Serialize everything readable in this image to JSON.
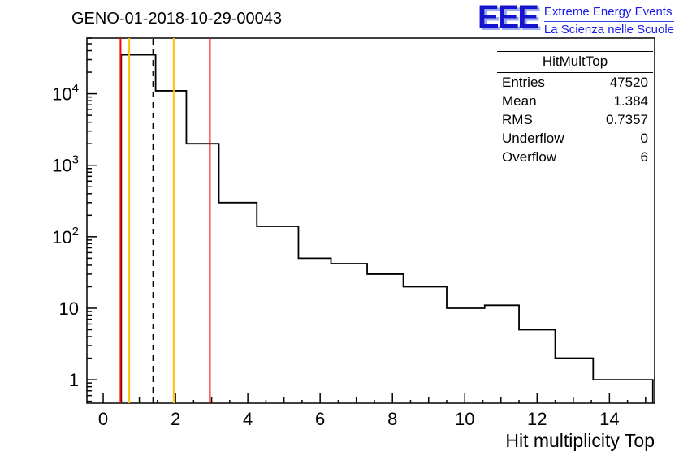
{
  "header": {
    "title": "GENO-01-2018-10-29-00043",
    "logo": {
      "acronym": "EEE",
      "line1": "Extreme Energy Events",
      "line2": "La Scienza nelle Scuole",
      "color": "#1a1aee"
    }
  },
  "stats_box": {
    "title": "HitMultTop",
    "rows": [
      {
        "label": "Entries",
        "value": "47520"
      },
      {
        "label": "Mean",
        "value": "1.384"
      },
      {
        "label": "RMS",
        "value": "0.7357"
      },
      {
        "label": "Underflow",
        "value": "0"
      },
      {
        "label": "Overflow",
        "value": "6"
      }
    ]
  },
  "chart_data": {
    "type": "line",
    "subtype": "step-histogram",
    "title": "GENO-01-2018-10-29-00043",
    "xlabel": "Hit multiplicity Top",
    "ylabel": "",
    "y_scale": "log",
    "x_range": [
      -0.45,
      15.25
    ],
    "y_range": [
      0.47,
      60000
    ],
    "x_ticks": [
      0,
      2,
      4,
      6,
      8,
      10,
      12,
      14
    ],
    "y_ticks": [
      1,
      10,
      100,
      1000,
      10000
    ],
    "grid": false,
    "line_color": "#000000",
    "steps": [
      {
        "x0": 0.5,
        "x1": 1.45,
        "y": 35000
      },
      {
        "x0": 1.45,
        "x1": 2.3,
        "y": 11000
      },
      {
        "x0": 2.3,
        "x1": 3.2,
        "y": 2000
      },
      {
        "x0": 3.2,
        "x1": 4.25,
        "y": 300
      },
      {
        "x0": 4.25,
        "x1": 5.4,
        "y": 140
      },
      {
        "x0": 5.4,
        "x1": 6.3,
        "y": 50
      },
      {
        "x0": 6.3,
        "x1": 7.3,
        "y": 42
      },
      {
        "x0": 7.3,
        "x1": 8.3,
        "y": 30
      },
      {
        "x0": 8.3,
        "x1": 9.5,
        "y": 20
      },
      {
        "x0": 9.5,
        "x1": 10.55,
        "y": 10
      },
      {
        "x0": 10.55,
        "x1": 11.5,
        "y": 11
      },
      {
        "x0": 11.5,
        "x1": 12.5,
        "y": 5
      },
      {
        "x0": 12.5,
        "x1": 13.55,
        "y": 2
      },
      {
        "x0": 13.55,
        "x1": 15.2,
        "y": 1
      }
    ],
    "vertical_lines": [
      {
        "x": 0.48,
        "color": "#ff0000",
        "style": "solid"
      },
      {
        "x": 0.72,
        "color": "#ffc000",
        "style": "solid"
      },
      {
        "x": 1.384,
        "color": "#000000",
        "style": "dashed"
      },
      {
        "x": 1.95,
        "color": "#ffc000",
        "style": "solid"
      },
      {
        "x": 2.95,
        "color": "#ff0000",
        "style": "solid"
      }
    ]
  }
}
